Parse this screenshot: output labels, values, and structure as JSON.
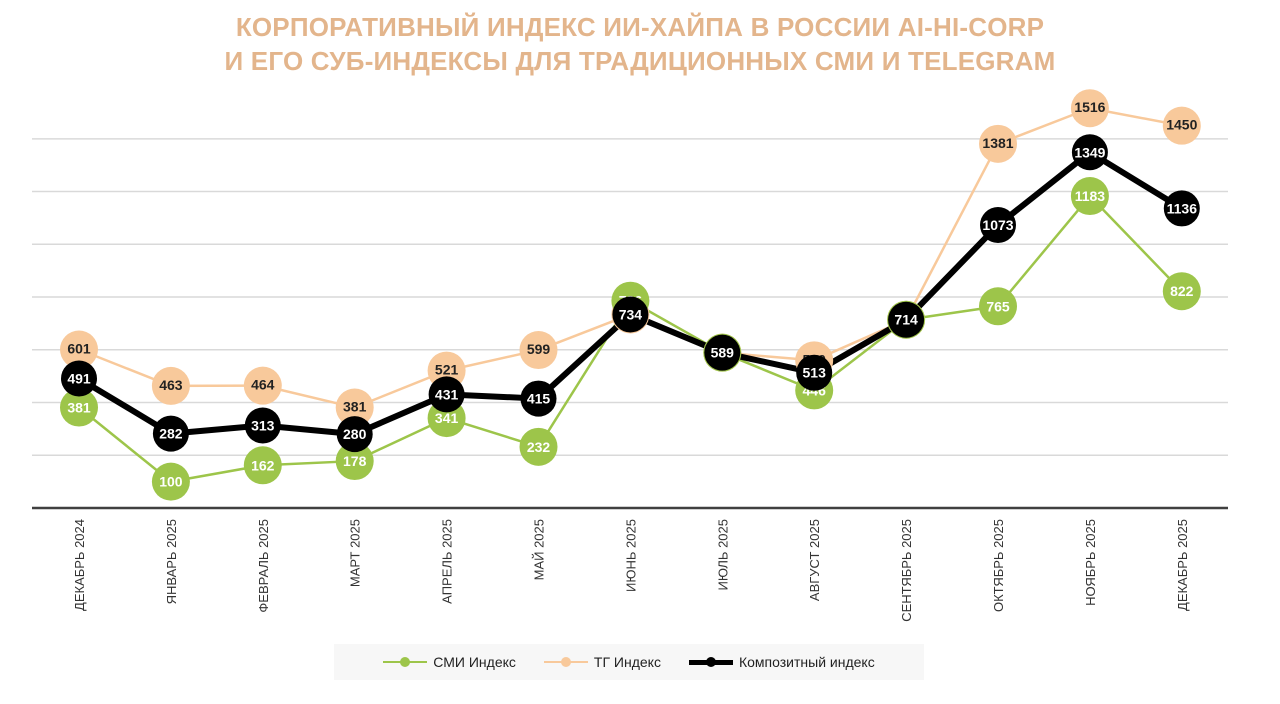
{
  "title": {
    "line1": "КОРПОРАТИВНЫЙ ИНДЕКС ИИ-ХАЙПА В РОССИИ AI-HI-CORP",
    "line2": "И ЕГО СУБ-ИНДЕКСЫ ДЛЯ ТРАДИЦИОННЫХ СМИ И TELEGRAM"
  },
  "colors": {
    "title": "#E3B58C",
    "smi": "#9DC54A",
    "tg": "#F8C99B",
    "composite": "#000000",
    "grid": "#d9d9d9",
    "axis": "#404040"
  },
  "chart_data": {
    "type": "line",
    "title": "КОРПОРАТИВНЫЙ ИНДЕКС ИИ-ХАЙПА В РОССИИ AI-HI-CORP И ЕГО СУБ-ИНДЕКСЫ ДЛЯ ТРАДИЦИОННЫХ СМИ И TELEGRAM",
    "categories": [
      "ДЕКАБРЬ 2024",
      "ЯНВАРЬ 2025",
      "ФЕВРАЛЬ 2025",
      "МАРТ 2025",
      "АПРЕЛЬ 2025",
      "МАЙ 2025",
      "ИЮНЬ 2025",
      "ИЮЛЬ 2025",
      "АВГУСТ 2025",
      "СЕНТЯБРЬ 2025",
      "ОКТЯБРЬ 2025",
      "НОЯБРЬ 2025",
      "ДЕКАБРЬ 2025"
    ],
    "series": [
      {
        "key": "smi",
        "name": "СМИ Индекс",
        "values": [
          381,
          100,
          162,
          178,
          341,
          232,
          786,
          589,
          446,
          714,
          765,
          1183,
          822
        ]
      },
      {
        "key": "tg",
        "name": "ТГ Индекс",
        "values": [
          601,
          463,
          464,
          381,
          521,
          599,
          734,
          589,
          560,
          714,
          1381,
          1516,
          1450
        ]
      },
      {
        "key": "composite",
        "name": "Композитный индекс",
        "values": [
          491,
          282,
          313,
          280,
          431,
          415,
          734,
          589,
          513,
          714,
          1073,
          1349,
          1136
        ]
      }
    ],
    "xlabel": "",
    "ylabel": "",
    "grid": true,
    "legend": "bottom"
  }
}
